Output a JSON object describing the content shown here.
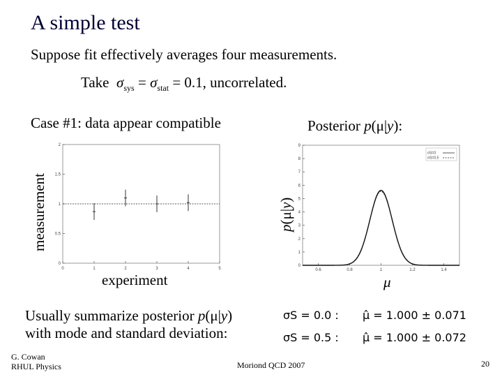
{
  "slide": {
    "title": "A simple test",
    "line1": "Suppose fit effectively averages four measurements.",
    "line2_take": "Take",
    "line2_sys": "sys",
    "line2_eq": " = ",
    "line2_stat": "stat",
    "line2_rest": " = 0.1, uncorrelated.",
    "case_label": "Case #1: data appear compatible",
    "posterior_label_pre": "Posterior ",
    "posterior_label_p": "p",
    "posterior_label_args": "(μ|",
    "posterior_label_y": "y",
    "posterior_label_end": "):",
    "summary_line1_pre": "Usually summarize posterior ",
    "summary_line1_p": "p",
    "summary_line1_args": "(μ|",
    "summary_line1_y": "y",
    "summary_line1_end": ")",
    "summary_line2": "with mode and standard deviation:",
    "results": [
      {
        "sigma_label": "σS = 0.0 :",
        "estimate": "μ̂ = 1.000 ± 0.071"
      },
      {
        "sigma_label": "σS = 0.5 :",
        "estimate": "μ̂ = 1.000 ± 0.072"
      }
    ],
    "footer_author": "G. Cowan",
    "footer_inst": "RHUL Physics",
    "footer_conf": "Moriond QCD 2007",
    "page_number": "20"
  },
  "chart_data": [
    {
      "type": "scatter",
      "title": "",
      "xlabel": "experiment",
      "ylabel": "measurement",
      "xlim": [
        0,
        5
      ],
      "ylim": [
        0,
        2
      ],
      "xticks": [
        "0",
        "1",
        "2",
        "3",
        "4",
        "5"
      ],
      "yticks": [
        "0",
        "0.5",
        "1",
        "1.5",
        "2"
      ],
      "points": [
        {
          "x": 1,
          "y": 0.87,
          "err": 0.14
        },
        {
          "x": 2,
          "y": 1.1,
          "err": 0.14
        },
        {
          "x": 3,
          "y": 1.0,
          "err": 0.14
        },
        {
          "x": 4,
          "y": 1.02,
          "err": 0.14
        }
      ],
      "reference_line_y": 1.0
    },
    {
      "type": "line",
      "title": "",
      "xlabel": "μ",
      "ylabel": "p(μ|y)",
      "xlim": [
        0.5,
        1.5
      ],
      "ylim": [
        0,
        9
      ],
      "xticks": [
        "0.6",
        "0.8",
        "1",
        "1.2",
        "1.4"
      ],
      "yticks": [
        "0",
        "1",
        "2",
        "3",
        "4",
        "5",
        "6",
        "7",
        "8",
        "9"
      ],
      "legend_position": "top-right",
      "series": [
        {
          "name": "σS=0",
          "mean": 1.0,
          "sd": 0.071
        },
        {
          "name": "σS=0.5",
          "mean": 1.0,
          "sd": 0.072
        }
      ]
    }
  ]
}
